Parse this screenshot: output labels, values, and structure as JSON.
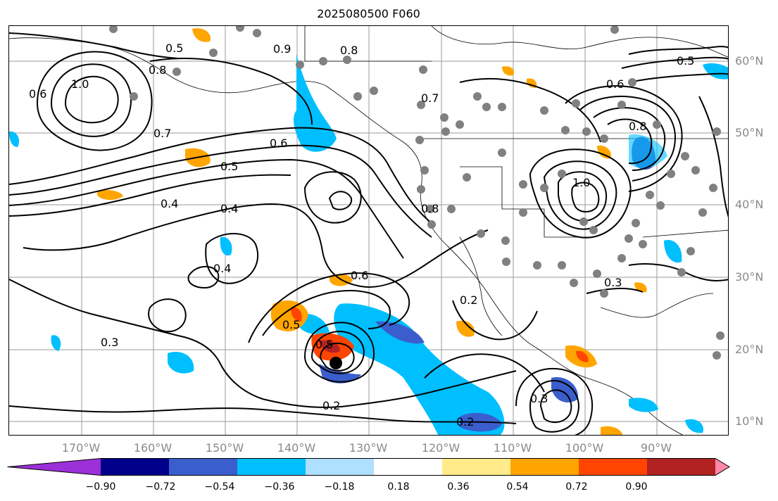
{
  "title": "2025080500 F060",
  "lat_labels": [
    "60°N",
    "50°N",
    "40°N",
    "30°N",
    "20°N",
    "10°N"
  ],
  "lon_labels": [
    "170°W",
    "160°W",
    "150°W",
    "140°W",
    "130°W",
    "120°W",
    "110°W",
    "100°W",
    "90°W"
  ],
  "colorbar": {
    "ticks": [
      "−0.90",
      "−0.72",
      "−0.54",
      "−0.36",
      "−0.18",
      "0.18",
      "0.36",
      "0.54",
      "0.72",
      "0.90"
    ],
    "colors": [
      "#9b30d8",
      "#00008b",
      "#3a5fcd",
      "#00bfff",
      "#b0e0ff",
      "#ffffff",
      "#ffeb8a",
      "#ffa500",
      "#ff4500",
      "#b22222",
      "#ff88aa"
    ]
  },
  "contour_labels": [
    "0.5",
    "0.6",
    "1.0",
    "0.8",
    "0.7",
    "0.4",
    "0.3",
    "0.2",
    "0.5",
    "0.6",
    "0.4",
    "0.4",
    "0.8",
    "1.0",
    "0.8",
    "0.6",
    "0.5",
    "0.3",
    "0.2",
    "0.2",
    "0.5",
    "0.5",
    "0.6",
    "0.7",
    "0.9",
    "0.8",
    "0.3"
  ],
  "storm_marker": "tropical-cyclone-center"
}
